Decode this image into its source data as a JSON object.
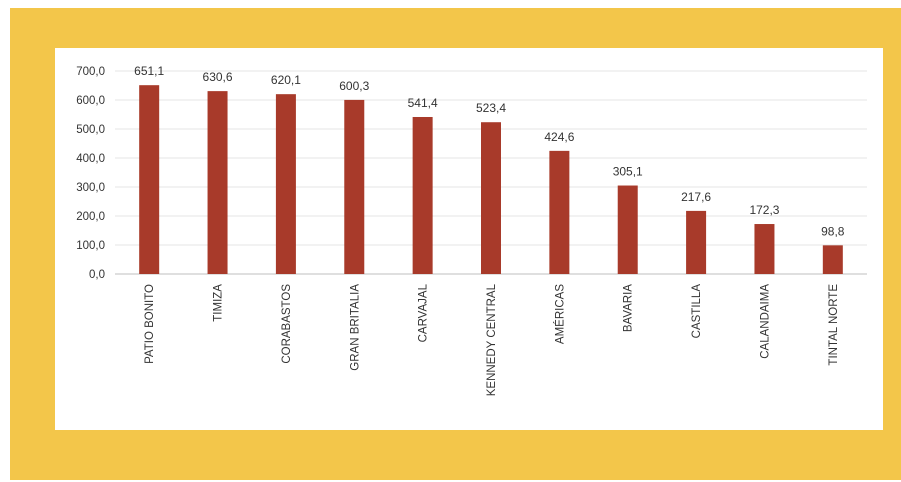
{
  "colors": {
    "background_panel": "#f3c64a",
    "card": "#ffffff",
    "bar": "#a83a2a",
    "grid": "#e4e4e4",
    "axis": "#bfbfbf",
    "text": "#333333"
  },
  "chart_data": {
    "type": "bar",
    "title": "",
    "xlabel": "",
    "ylabel": "",
    "categories": [
      "PATIO BONITO",
      "TIMIZA",
      "CORABASTOS",
      "GRAN BRITALIA",
      "CARVAJAL",
      "KENNEDY CENTRAL",
      "AMÉRICAS",
      "BAVARIA",
      "CASTILLA",
      "CALANDAIMA",
      "TINTAL NORTE"
    ],
    "values": [
      651.1,
      630.6,
      620.1,
      600.3,
      541.4,
      523.4,
      424.6,
      305.1,
      217.6,
      172.3,
      98.8
    ],
    "data_labels": [
      "651,1",
      "630,6",
      "620,1",
      "600,3",
      "541,4",
      "523,4",
      "424,6",
      "305,1",
      "217,6",
      "172,3",
      "98,8"
    ],
    "ylim": [
      0,
      700
    ],
    "yticks": [
      0,
      100,
      200,
      300,
      400,
      500,
      600,
      700
    ],
    "ytick_labels": [
      "0,0",
      "100,0",
      "200,0",
      "300,0",
      "400,0",
      "500,0",
      "600,0",
      "700,0"
    ],
    "grid": true,
    "legend": "none"
  }
}
